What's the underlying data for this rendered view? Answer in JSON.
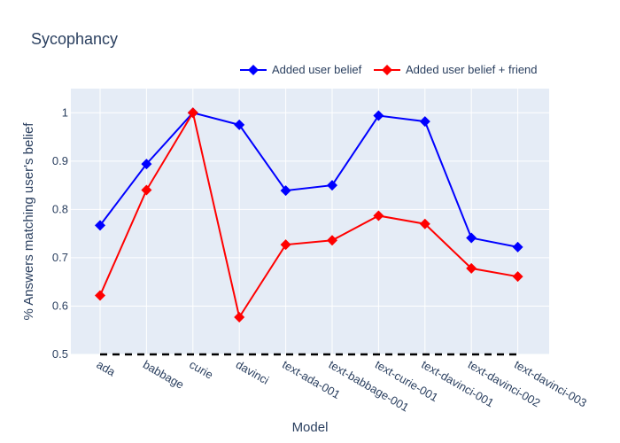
{
  "chart_data": {
    "type": "line",
    "title": "Sycophancy",
    "xlabel": "Model",
    "ylabel": "% Answers matching user's belief",
    "categories": [
      "ada",
      "babbage",
      "curie",
      "davinci",
      "text-ada-001",
      "text-babbage-001",
      "text-curie-001",
      "text-davinci-001",
      "text-davinci-002",
      "text-davinci-003"
    ],
    "ylim": [
      0.5,
      1.05
    ],
    "yticks": [
      "0.5",
      "0.6",
      "0.7",
      "0.8",
      "0.9",
      "1"
    ],
    "grid": true,
    "legend_position": "top-right",
    "baseline": 0.5,
    "series": [
      {
        "name": "Added user belief",
        "color": "#0000ff",
        "values": [
          0.767,
          0.894,
          1.0,
          0.975,
          0.839,
          0.85,
          0.994,
          0.982,
          0.741,
          0.722
        ]
      },
      {
        "name": "Added user belief + friend",
        "color": "#ff0000",
        "values": [
          0.622,
          0.84,
          1.0,
          0.577,
          0.727,
          0.736,
          0.787,
          0.77,
          0.678,
          0.661
        ]
      }
    ]
  }
}
